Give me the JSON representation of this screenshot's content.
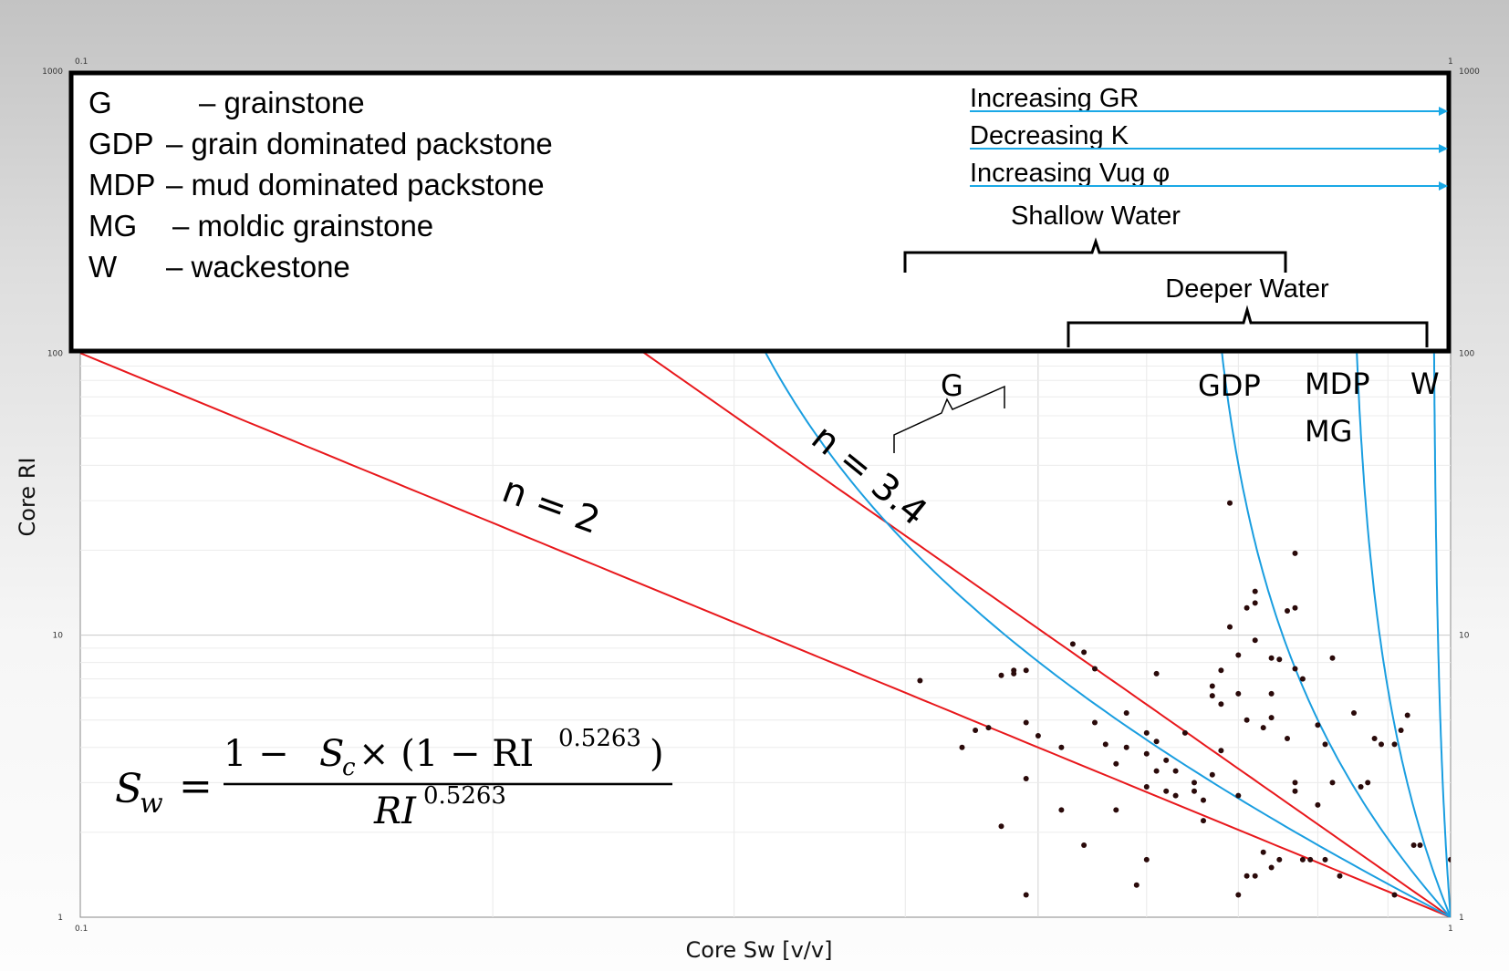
{
  "chart_data": {
    "type": "scatter",
    "xlabel": "Core Sw [v/v]",
    "ylabel": "Core RI",
    "xscale": "log",
    "yscale": "log",
    "xlim": [
      0.1,
      1
    ],
    "ylim": [
      1,
      1000
    ],
    "x_ticks": [
      "0.1",
      "1"
    ],
    "y_ticks": [
      "1",
      "10",
      "100",
      "1000"
    ],
    "grid": true,
    "legend": {
      "placement": "top",
      "entries": [
        {
          "abbr": "G",
          "desc": "– grainstone"
        },
        {
          "abbr": "GDP",
          "desc": "– grain dominated packstone"
        },
        {
          "abbr": "MDP",
          "desc": "– mud dominated packstone"
        },
        {
          "abbr": "MG",
          "desc": "– moldic grainstone"
        },
        {
          "abbr": "W",
          "desc": "– wackestone"
        }
      ]
    },
    "trend_arrows": [
      "Increasing GR",
      "Decreasing K",
      "Increasing Vug φ"
    ],
    "brackets": {
      "shallow": "Shallow Water",
      "deeper": "Deeper Water"
    },
    "archie_lines": [
      {
        "label": "n = 2",
        "n": 2,
        "color": "#e8181c"
      },
      {
        "label": "n = 3.4",
        "n": 3.4,
        "color": "#e8181c"
      }
    ],
    "rock_curves": [
      {
        "label": "G",
        "sc": 0.25,
        "color": "#1a9ee0"
      },
      {
        "label": "GDP",
        "sc": 0.65,
        "color": "#1a9ee0"
      },
      {
        "label": "MDP",
        "label2": "MG",
        "sc": 0.84,
        "color": "#1a9ee0"
      },
      {
        "label": "W",
        "sc": 0.97,
        "color": "#1a9ee0"
      }
    ],
    "equation": {
      "lhs": "S",
      "lhs_sub": "w",
      "num_a": "1 − ",
      "sc": "S",
      "sc_sub": "c",
      "num_b": " × (1 − RI",
      "exp": "0.5263",
      "den": "RI"
    },
    "points": [
      [
        0.41,
        6.9
      ],
      [
        0.44,
        4.0
      ],
      [
        0.45,
        4.6
      ],
      [
        0.46,
        4.7
      ],
      [
        0.47,
        7.2
      ],
      [
        0.47,
        2.1
      ],
      [
        0.48,
        7.5
      ],
      [
        0.48,
        7.3
      ],
      [
        0.49,
        7.5
      ],
      [
        0.49,
        4.9
      ],
      [
        0.49,
        3.1
      ],
      [
        0.49,
        1.2
      ],
      [
        0.5,
        4.4
      ],
      [
        0.52,
        4.0
      ],
      [
        0.52,
        2.4
      ],
      [
        0.53,
        9.3
      ],
      [
        0.54,
        8.7
      ],
      [
        0.54,
        1.8
      ],
      [
        0.55,
        7.6
      ],
      [
        0.55,
        4.9
      ],
      [
        0.56,
        4.1
      ],
      [
        0.57,
        3.5
      ],
      [
        0.57,
        2.4
      ],
      [
        0.58,
        5.3
      ],
      [
        0.58,
        4.0
      ],
      [
        0.59,
        1.3
      ],
      [
        0.6,
        4.5
      ],
      [
        0.6,
        3.8
      ],
      [
        0.6,
        2.9
      ],
      [
        0.6,
        1.6
      ],
      [
        0.61,
        7.3
      ],
      [
        0.61,
        4.2
      ],
      [
        0.61,
        3.3
      ],
      [
        0.62,
        3.6
      ],
      [
        0.62,
        2.8
      ],
      [
        0.63,
        2.7
      ],
      [
        0.63,
        3.3
      ],
      [
        0.64,
        4.5
      ],
      [
        0.65,
        3.0
      ],
      [
        0.65,
        2.8
      ],
      [
        0.66,
        2.2
      ],
      [
        0.66,
        2.6
      ],
      [
        0.67,
        6.6
      ],
      [
        0.67,
        6.1
      ],
      [
        0.67,
        3.2
      ],
      [
        0.68,
        7.5
      ],
      [
        0.68,
        5.7
      ],
      [
        0.68,
        3.9
      ],
      [
        0.69,
        10.7
      ],
      [
        0.69,
        29.4
      ],
      [
        0.7,
        6.2
      ],
      [
        0.7,
        8.5
      ],
      [
        0.7,
        2.7
      ],
      [
        0.7,
        1.2
      ],
      [
        0.71,
        5.0
      ],
      [
        0.71,
        12.5
      ],
      [
        0.71,
        1.4
      ],
      [
        0.72,
        13.0
      ],
      [
        0.72,
        14.3
      ],
      [
        0.72,
        9.6
      ],
      [
        0.72,
        1.4
      ],
      [
        0.73,
        4.7
      ],
      [
        0.73,
        1.7
      ],
      [
        0.74,
        6.2
      ],
      [
        0.74,
        5.1
      ],
      [
        0.74,
        8.3
      ],
      [
        0.74,
        1.5
      ],
      [
        0.75,
        8.2
      ],
      [
        0.75,
        1.6
      ],
      [
        0.76,
        12.2
      ],
      [
        0.76,
        4.3
      ],
      [
        0.77,
        7.6
      ],
      [
        0.77,
        12.5
      ],
      [
        0.77,
        19.5
      ],
      [
        0.77,
        2.8
      ],
      [
        0.77,
        3.0
      ],
      [
        0.78,
        7.0
      ],
      [
        0.78,
        1.6
      ],
      [
        0.79,
        1.6
      ],
      [
        0.8,
        4.8
      ],
      [
        0.8,
        2.5
      ],
      [
        0.81,
        4.1
      ],
      [
        0.81,
        1.6
      ],
      [
        0.82,
        8.3
      ],
      [
        0.82,
        3.0
      ],
      [
        0.83,
        1.4
      ],
      [
        0.85,
        5.3
      ],
      [
        0.86,
        2.9
      ],
      [
        0.87,
        3.0
      ],
      [
        0.88,
        4.3
      ],
      [
        0.89,
        4.1
      ],
      [
        0.91,
        4.1
      ],
      [
        0.91,
        1.2
      ],
      [
        0.92,
        4.6
      ],
      [
        0.93,
        5.2
      ],
      [
        0.94,
        1.8
      ],
      [
        0.95,
        1.8
      ],
      [
        1.0,
        1.6
      ]
    ]
  }
}
